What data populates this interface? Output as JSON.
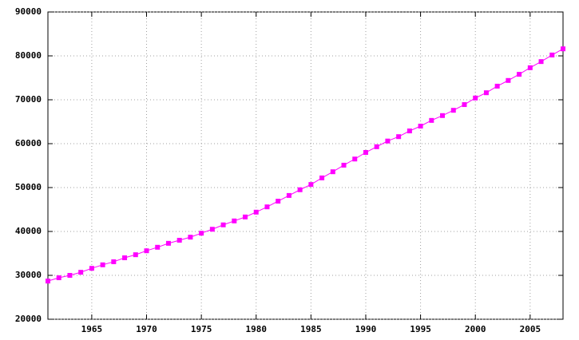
{
  "chart_data": {
    "type": "line",
    "x": [
      1961,
      1962,
      1963,
      1964,
      1965,
      1966,
      1967,
      1968,
      1969,
      1970,
      1971,
      1972,
      1973,
      1974,
      1975,
      1976,
      1977,
      1978,
      1979,
      1980,
      1981,
      1982,
      1983,
      1984,
      1985,
      1986,
      1987,
      1988,
      1989,
      1990,
      1991,
      1992,
      1993,
      1994,
      1995,
      1996,
      1997,
      1998,
      1999,
      2000,
      2001,
      2002,
      2003,
      2004,
      2005,
      2006,
      2007,
      2008
    ],
    "series": [
      {
        "color": "#ff00ff",
        "values": [
          28700,
          29450,
          30000,
          30700,
          31600,
          32400,
          33100,
          34000,
          34700,
          35600,
          36400,
          37300,
          38000,
          38700,
          39600,
          40500,
          41500,
          42400,
          43300,
          44400,
          45600,
          46900,
          48200,
          49500,
          50700,
          52200,
          53600,
          55100,
          56500,
          58000,
          59300,
          60600,
          61600,
          62900,
          64000,
          65300,
          66400,
          67600,
          68900,
          70400,
          71600,
          73100,
          74400,
          75800,
          77300,
          78700,
          80200,
          81600
        ]
      }
    ],
    "xlim": [
      1961,
      2008
    ],
    "xticks": [
      1965,
      1970,
      1975,
      1980,
      1985,
      1990,
      1995,
      2000,
      2005
    ],
    "ylim": [
      20000,
      90000
    ],
    "yticks": [
      20000,
      30000,
      40000,
      50000,
      60000,
      70000,
      80000,
      90000
    ],
    "grid": true
  }
}
